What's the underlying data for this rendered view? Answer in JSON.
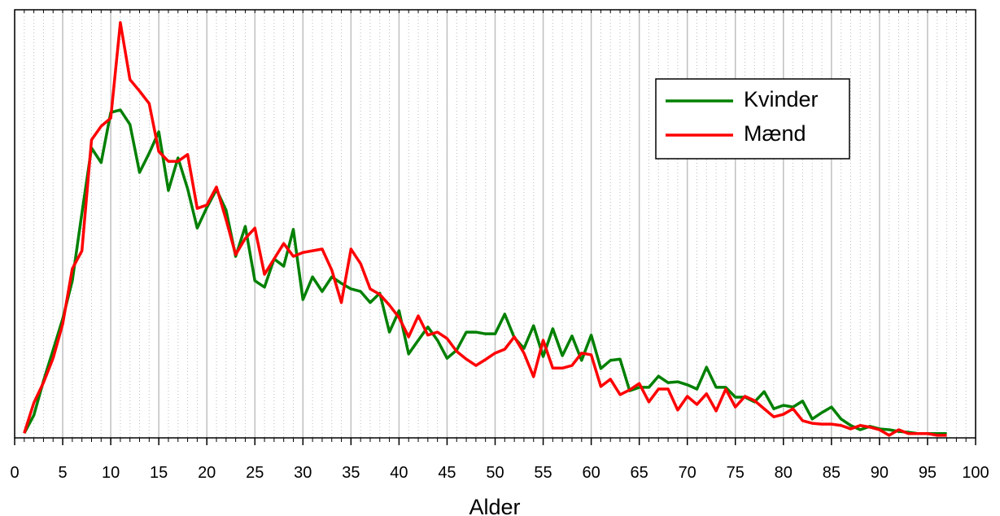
{
  "chart_data": {
    "type": "line",
    "x_label": "Alder",
    "x": [
      1,
      2,
      3,
      4,
      5,
      6,
      7,
      8,
      9,
      10,
      11,
      12,
      13,
      14,
      15,
      16,
      17,
      18,
      19,
      20,
      21,
      22,
      23,
      24,
      25,
      26,
      27,
      28,
      29,
      30,
      31,
      32,
      33,
      34,
      35,
      36,
      37,
      38,
      39,
      40,
      41,
      42,
      43,
      44,
      45,
      46,
      47,
      48,
      49,
      50,
      51,
      52,
      53,
      54,
      55,
      56,
      57,
      58,
      59,
      60,
      61,
      62,
      63,
      64,
      65,
      66,
      67,
      68,
      69,
      70,
      71,
      72,
      73,
      74,
      75,
      76,
      77,
      78,
      79,
      80,
      81,
      82,
      83,
      84,
      85,
      86,
      87,
      88,
      89,
      90,
      91,
      92,
      93,
      94,
      95,
      96,
      97
    ],
    "series": [
      {
        "name": "Kvinder",
        "color": "#008000",
        "values": [
          1.1,
          5.3,
          13.3,
          20.5,
          27.8,
          36.7,
          52.5,
          67.7,
          64.3,
          76.0,
          76.6,
          73.2,
          62.0,
          66.5,
          71.5,
          57.8,
          65.4,
          58.2,
          49.0,
          53.8,
          58.0,
          53.2,
          42.4,
          49.4,
          36.7,
          35.2,
          41.8,
          40.1,
          48.7,
          32.3,
          37.6,
          34.2,
          37.6,
          36.1,
          34.8,
          34.2,
          31.6,
          33.8,
          24.7,
          29.7,
          19.6,
          22.8,
          25.9,
          22.8,
          18.6,
          20.5,
          24.7,
          24.7,
          24.3,
          24.3,
          28.9,
          23.4,
          20.9,
          26.2,
          19.0,
          25.5,
          19.2,
          23.8,
          18.1,
          24.0,
          16.2,
          18.1,
          18.4,
          11.0,
          11.8,
          11.8,
          14.4,
          12.9,
          13.1,
          12.4,
          11.4,
          16.5,
          11.8,
          11.8,
          9.5,
          9.5,
          8.4,
          10.8,
          6.8,
          7.6,
          7.2,
          8.6,
          4.4,
          5.9,
          7.2,
          4.4,
          2.9,
          1.9,
          2.7,
          2.1,
          1.9,
          1.5,
          1.3,
          1.0,
          1.0,
          1.0,
          1.0
        ]
      },
      {
        "name": "Mænd",
        "color": "#ff0000",
        "values": [
          1.1,
          8.2,
          12.9,
          18.6,
          26.6,
          39.5,
          43.7,
          69.6,
          72.8,
          74.7,
          97.0,
          83.7,
          81.0,
          78.1,
          66.9,
          64.6,
          64.6,
          66.2,
          53.6,
          54.4,
          58.6,
          51.0,
          42.8,
          46.6,
          49.0,
          38.2,
          41.8,
          45.4,
          42.4,
          43.3,
          43.7,
          44.1,
          39.2,
          31.6,
          44.1,
          40.7,
          34.8,
          33.5,
          31.0,
          28.1,
          23.6,
          28.5,
          24.0,
          24.7,
          23.2,
          20.2,
          18.4,
          16.9,
          18.3,
          19.8,
          20.7,
          23.6,
          19.8,
          14.3,
          22.8,
          16.3,
          16.3,
          16.9,
          19.8,
          19.4,
          12.0,
          13.7,
          10.1,
          11.2,
          12.7,
          8.4,
          11.4,
          11.4,
          6.5,
          9.7,
          7.8,
          10.3,
          6.3,
          11.4,
          7.2,
          9.7,
          8.7,
          6.8,
          4.9,
          5.5,
          6.8,
          4.0,
          3.4,
          3.2,
          3.2,
          2.9,
          2.1,
          2.9,
          2.5,
          1.9,
          0.6,
          1.9,
          1.0,
          1.0,
          1.0,
          0.6,
          0.6
        ]
      }
    ],
    "xlim": [
      0,
      100
    ],
    "xticks": [
      0,
      5,
      10,
      15,
      20,
      25,
      30,
      35,
      40,
      45,
      50,
      55,
      60,
      65,
      70,
      75,
      80,
      85,
      90,
      95,
      100
    ],
    "ylim": [
      0,
      100
    ],
    "grid": true,
    "legend": "upper right"
  }
}
